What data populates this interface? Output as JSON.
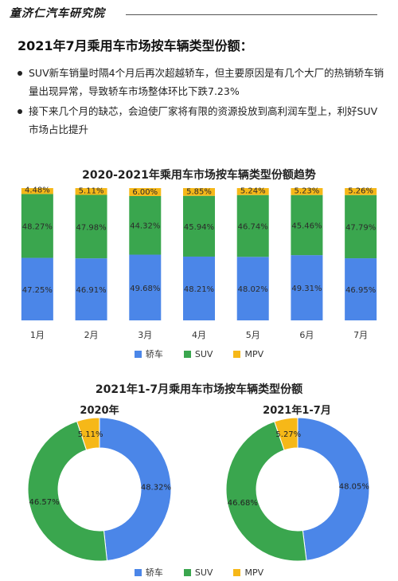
{
  "header": {
    "brand": "童济仁汽车研究院"
  },
  "headline": "2021年7月乘用车市场按车辆类型份额：",
  "bullets": [
    "SUV新车销量时隔4个月后再次超越轿车，但主要原因是有几个大厂的热销轿车销量出现异常，导致轿车市场整体环比下跌7.23%",
    "接下来几个月的缺芯，会迫使厂家将有限的资源投放到高利润车型上，利好SUV市场占比提升"
  ],
  "colors": {
    "sedan": "#4b86e8",
    "suv": "#3aa64e",
    "mpv": "#f6b818"
  },
  "legend": [
    "轿车",
    "SUV",
    "MPV"
  ],
  "chart_data": [
    {
      "type": "bar",
      "stacked": true,
      "title": "2020-2021年乘用车市场按车辆类型份额趋势",
      "categories": [
        "1月",
        "2月",
        "3月",
        "4月",
        "5月",
        "6月",
        "7月"
      ],
      "series": [
        {
          "name": "轿车",
          "values": [
            47.25,
            46.91,
            49.68,
            48.21,
            48.02,
            49.31,
            46.95
          ],
          "labels": [
            "47.25%",
            "46.91%",
            "49.68%",
            "48.21%",
            "48.02%",
            "49.31%",
            "46.95%"
          ]
        },
        {
          "name": "SUV",
          "values": [
            48.27,
            47.98,
            44.32,
            45.94,
            46.74,
            45.46,
            47.79
          ],
          "labels": [
            "48.27%",
            "47.98%",
            "44.32%",
            "45.94%",
            "46.74%",
            "45.46%",
            "47.79%"
          ]
        },
        {
          "name": "MPV",
          "values": [
            4.48,
            5.11,
            6.0,
            5.85,
            5.24,
            5.23,
            5.26
          ],
          "labels": [
            "4.48%",
            "5.11%",
            "6.00%",
            "5.85%",
            "5.24%",
            "5.23%",
            "5.26%"
          ]
        }
      ],
      "legend_position": "bottom"
    },
    {
      "type": "pie",
      "donut": true,
      "title": "2021年1-7月乘用车市场按车辆类型份额",
      "subtitle": "2020年",
      "categories": [
        "轿车",
        "SUV",
        "MPV"
      ],
      "values": [
        48.32,
        46.57,
        5.11
      ],
      "labels": [
        "48.32%",
        "46.57%",
        "5.11%"
      ]
    },
    {
      "type": "pie",
      "donut": true,
      "subtitle": "2021年1-7月",
      "categories": [
        "轿车",
        "SUV",
        "MPV"
      ],
      "values": [
        48.05,
        46.68,
        5.27
      ],
      "labels": [
        "48.05%",
        "46.68%",
        "5.27%"
      ],
      "legend_position": "bottom"
    }
  ]
}
